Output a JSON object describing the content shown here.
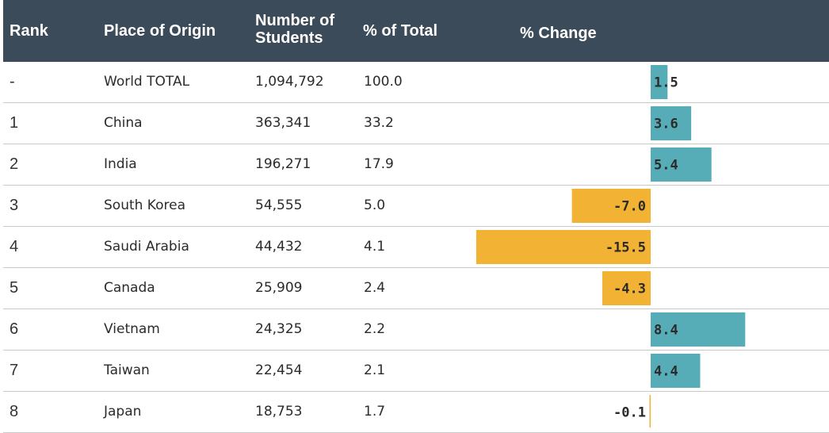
{
  "header": {
    "rank": "Rank",
    "place": "Place of Origin",
    "students_line1": "Number of",
    "students_line2": "Students",
    "pct_total": "% of Total",
    "pct_change": "% Change"
  },
  "colors": {
    "header_bg": "#3c4b59",
    "positive": "#56adb8",
    "negative": "#f2b233",
    "divider": "#c9c9c9"
  },
  "rows": [
    {
      "rank": "-",
      "place": "World TOTAL",
      "students": "1,094,792",
      "pct_total": "100.0",
      "change_label": "1.5"
    },
    {
      "rank": "1",
      "place": "China",
      "students": "363,341",
      "pct_total": "33.2",
      "change_label": "3.6"
    },
    {
      "rank": "2",
      "place": "India",
      "students": "196,271",
      "pct_total": "17.9",
      "change_label": "5.4"
    },
    {
      "rank": "3",
      "place": "South Korea",
      "students": "54,555",
      "pct_total": "5.0",
      "change_label": "-7.0"
    },
    {
      "rank": "4",
      "place": "Saudi Arabia",
      "students": "44,432",
      "pct_total": "4.1",
      "change_label": "-15.5"
    },
    {
      "rank": "5",
      "place": "Canada",
      "students": "25,909",
      "pct_total": "2.4",
      "change_label": "-4.3"
    },
    {
      "rank": "6",
      "place": "Vietnam",
      "students": "24,325",
      "pct_total": "2.2",
      "change_label": "8.4"
    },
    {
      "rank": "7",
      "place": "Taiwan",
      "students": "22,454",
      "pct_total": "2.1",
      "change_label": "4.4"
    },
    {
      "rank": "8",
      "place": "Japan",
      "students": "18,753",
      "pct_total": "1.7",
      "change_label": "-0.1"
    }
  ],
  "chart_data": {
    "type": "bar",
    "orientation": "horizontal",
    "categories": [
      "World TOTAL",
      "China",
      "India",
      "South Korea",
      "Saudi Arabia",
      "Canada",
      "Vietnam",
      "Taiwan",
      "Japan"
    ],
    "values": [
      1.5,
      3.6,
      5.4,
      -7.0,
      -15.5,
      -4.3,
      8.4,
      4.4,
      -0.1
    ],
    "title": "",
    "xlabel": "% Change",
    "ylabel": "",
    "xlim": [
      -15.5,
      8.4
    ],
    "grid": false
  }
}
